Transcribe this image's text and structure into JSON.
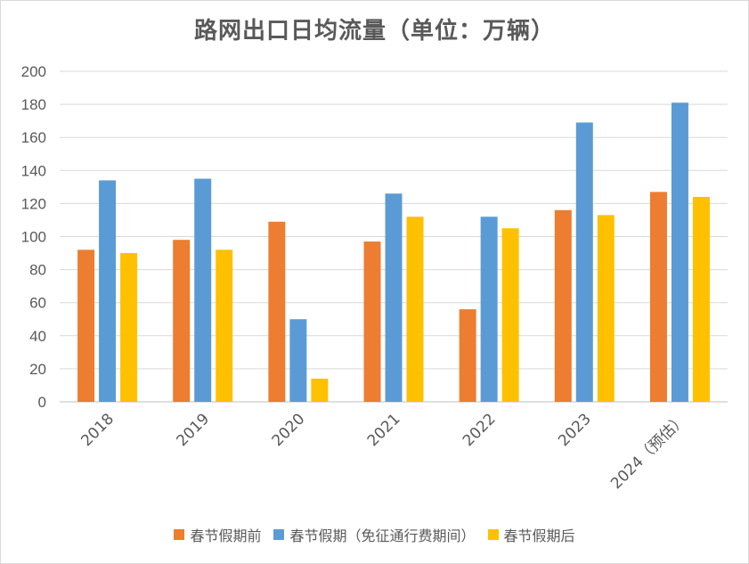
{
  "chart_data": {
    "type": "bar",
    "title": "路网出口日均流量（单位：万辆）",
    "categories": [
      "2018",
      "2019",
      "2020",
      "2021",
      "2022",
      "2023",
      "2024（预估）"
    ],
    "series": [
      {
        "name": "春节假期前",
        "color": "#ED7D31",
        "values": [
          92,
          98,
          109,
          97,
          56,
          116,
          127
        ]
      },
      {
        "name": "春节假期（免征通行费期间）",
        "color": "#5B9BD5",
        "values": [
          134,
          135,
          50,
          126,
          112,
          169,
          181
        ]
      },
      {
        "name": "春节假期后",
        "color": "#FFC000",
        "values": [
          90,
          92,
          14,
          112,
          105,
          113,
          124
        ]
      }
    ],
    "yticks": [
      "0",
      "20",
      "40",
      "60",
      "80",
      "100",
      "120",
      "140",
      "160",
      "180",
      "200"
    ],
    "ylim": [
      0,
      200
    ],
    "grid": true,
    "legend_position": "bottom"
  }
}
